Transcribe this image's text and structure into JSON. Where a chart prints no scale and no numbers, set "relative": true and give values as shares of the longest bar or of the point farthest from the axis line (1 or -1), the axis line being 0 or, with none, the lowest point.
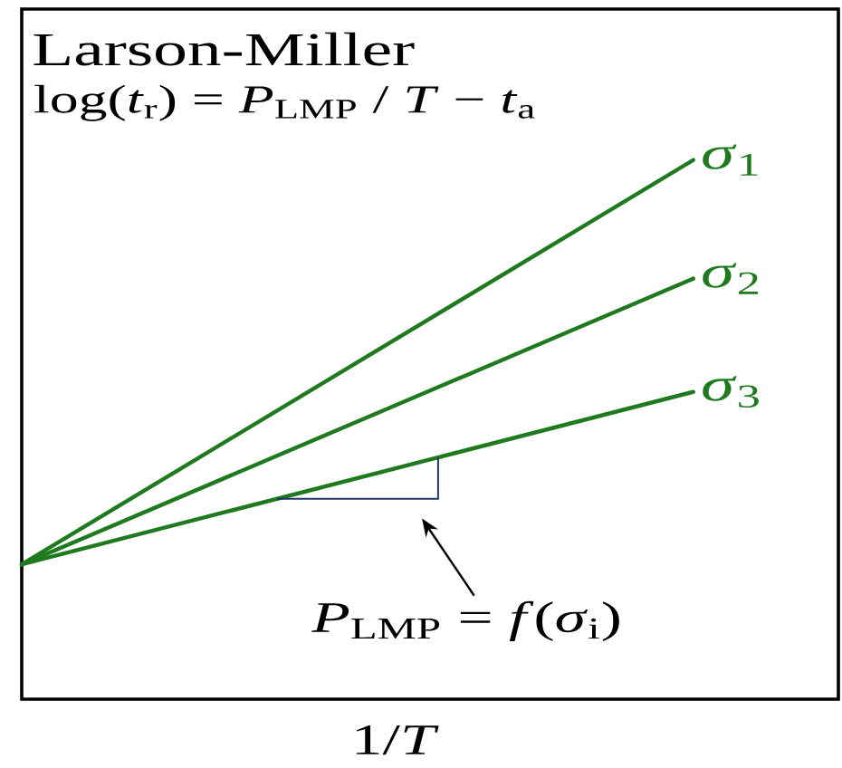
{
  "chart_data": {
    "type": "line",
    "title": "Larson-Miller",
    "subtitle": "log(*t*$_{r}$) = *P*$_{LMP}$ / *T* − *t*$_{a}$",
    "xlabel": "1/*T*",
    "categories": [
      null,
      null
    ],
    "relative": true,
    "series": [
      {
        "name": "*σ*$_{1}$",
        "color": "#1f7a1f",
        "values": [
          0.25,
          1
        ]
      },
      {
        "name": "*σ*$_{2}$",
        "color": "#1f7a1f",
        "values": [
          0.25,
          0.78
        ]
      },
      {
        "name": "*σ*$_{3}$",
        "color": "#1f7a1f",
        "values": [
          0.25,
          0.57
        ]
      }
    ],
    "annotations": [
      "*P*$_{LMP}$ = *f*(*σ*$_{i}$)"
    ]
  }
}
